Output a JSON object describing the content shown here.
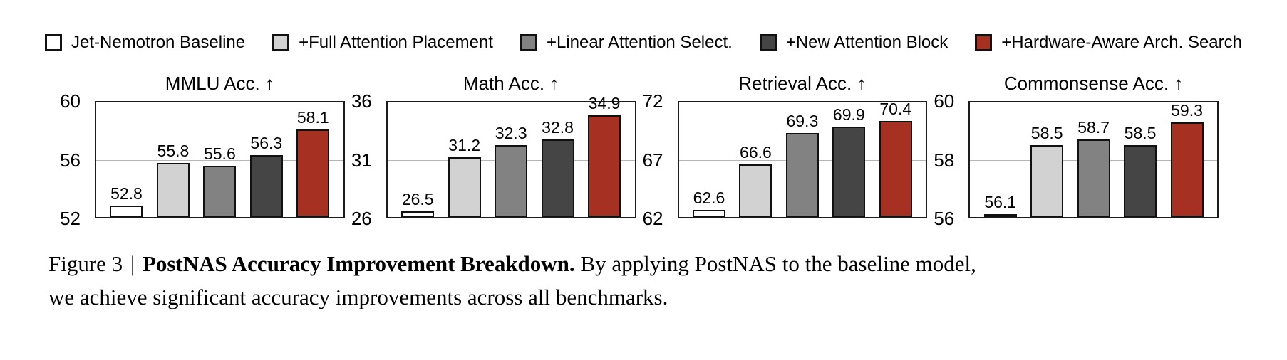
{
  "legend": {
    "items": [
      {
        "label": "Jet-Nemotron Baseline",
        "color": "#ffffff"
      },
      {
        "label": "+Full Attention Placement",
        "color": "#d2d2d2"
      },
      {
        "label": "+Linear Attention Select.",
        "color": "#828282"
      },
      {
        "label": "+New Attention Block",
        "color": "#454545"
      },
      {
        "label": "+Hardware-Aware Arch. Search",
        "color": "#a63122"
      }
    ]
  },
  "colors": {
    "bar_colors": [
      "#ffffff",
      "#d2d2d2",
      "#828282",
      "#454545",
      "#a63122"
    ],
    "bar_border": "#111111",
    "plot_frame": "#1c1c1c",
    "gridline": "#b5b5b5"
  },
  "chart_data": [
    {
      "type": "bar",
      "title": "MMLU Acc. ↑",
      "categories": [
        "Jet-Nemotron Baseline",
        "+Full Attention Placement",
        "+Linear Attention Select.",
        "+New Attention Block",
        "+Hardware-Aware Arch. Search"
      ],
      "values": [
        52.8,
        55.8,
        55.6,
        56.3,
        58.1
      ],
      "ylim": [
        52,
        60
      ],
      "yticks": [
        52,
        56,
        60
      ],
      "grid": "horizontal line at middle tick",
      "legend_position": "top shared"
    },
    {
      "type": "bar",
      "title": "Math Acc. ↑",
      "categories": [
        "Jet-Nemotron Baseline",
        "+Full Attention Placement",
        "+Linear Attention Select.",
        "+New Attention Block",
        "+Hardware-Aware Arch. Search"
      ],
      "values": [
        26.5,
        31.2,
        32.3,
        32.8,
        34.9
      ],
      "ylim": [
        26,
        36
      ],
      "yticks": [
        26,
        31,
        36
      ],
      "grid": "horizontal line at middle tick",
      "legend_position": "top shared"
    },
    {
      "type": "bar",
      "title": "Retrieval Acc. ↑",
      "categories": [
        "Jet-Nemotron Baseline",
        "+Full Attention Placement",
        "+Linear Attention Select.",
        "+New Attention Block",
        "+Hardware-Aware Arch. Search"
      ],
      "values": [
        62.6,
        66.6,
        69.3,
        69.9,
        70.4
      ],
      "ylim": [
        62,
        72
      ],
      "yticks": [
        62,
        67,
        72
      ],
      "grid": "horizontal line at middle tick",
      "legend_position": "top shared"
    },
    {
      "type": "bar",
      "title": "Commonsense Acc. ↑",
      "categories": [
        "Jet-Nemotron Baseline",
        "+Full Attention Placement",
        "+Linear Attention Select.",
        "+New Attention Block",
        "+Hardware-Aware Arch. Search"
      ],
      "values": [
        56.1,
        58.5,
        58.7,
        58.5,
        59.3
      ],
      "ylim": [
        56,
        60
      ],
      "yticks": [
        56,
        58,
        60
      ],
      "grid": "horizontal line at middle tick",
      "legend_position": "top shared"
    }
  ],
  "caption": {
    "figure_label": "Figure 3",
    "separator": "|",
    "title_bold": "PostNAS Accuracy Improvement Breakdown.",
    "line1_rest": "By applying PostNAS to the baseline model,",
    "line2": "we achieve significant accuracy improvements across all benchmarks."
  }
}
